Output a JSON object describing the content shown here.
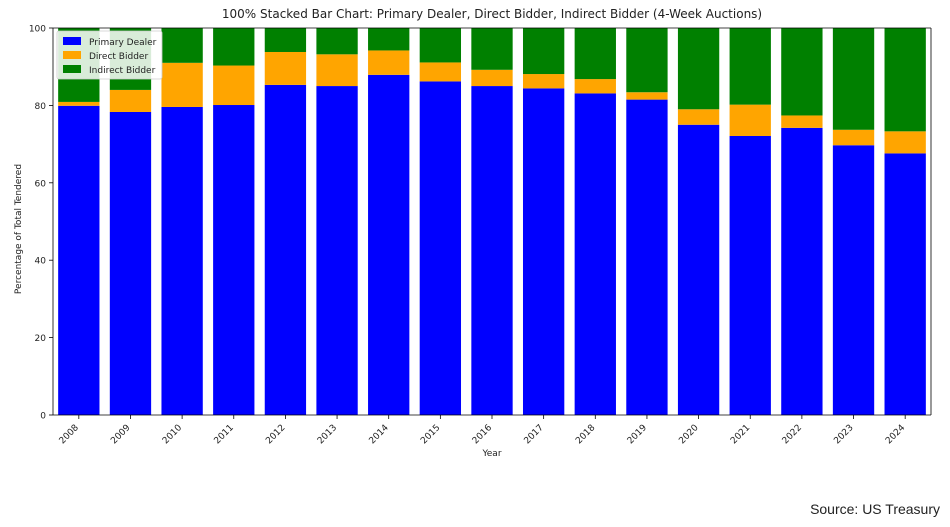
{
  "source": "Source: US Treasury",
  "chart_data": {
    "type": "bar",
    "stacked": true,
    "title": "100% Stacked Bar Chart: Primary Dealer, Direct Bidder, Indirect Bidder (4-Week Auctions)",
    "xlabel": "Year",
    "ylabel": "Percentage of Total Tendered",
    "ylim": [
      0,
      100
    ],
    "yticks": [
      0,
      20,
      40,
      60,
      80,
      100
    ],
    "legend_position": "top-left",
    "grid": false,
    "categories": [
      "2008",
      "2009",
      "2010",
      "2011",
      "2012",
      "2013",
      "2014",
      "2015",
      "2016",
      "2017",
      "2018",
      "2019",
      "2020",
      "2021",
      "2022",
      "2023",
      "2024"
    ],
    "series": [
      {
        "name": "Primary Dealer",
        "color": "#0000ff",
        "values": [
          79.9,
          78.3,
          79.6,
          80.1,
          85.3,
          85.0,
          87.9,
          86.2,
          85.0,
          84.4,
          83.1,
          81.5,
          75.0,
          72.1,
          74.2,
          69.7,
          67.6
        ]
      },
      {
        "name": "Direct Bidder",
        "color": "#ffa500",
        "values": [
          1.0,
          5.7,
          11.4,
          10.2,
          8.5,
          8.2,
          6.3,
          4.9,
          4.2,
          3.7,
          3.7,
          1.9,
          4.0,
          8.1,
          3.2,
          4.0,
          5.7
        ]
      },
      {
        "name": "Indirect Bidder",
        "color": "#008000",
        "values": [
          19.1,
          16.0,
          9.0,
          9.7,
          6.2,
          6.8,
          5.8,
          8.9,
          10.8,
          11.9,
          13.2,
          16.6,
          21.0,
          19.8,
          22.6,
          26.3,
          26.7
        ]
      }
    ]
  }
}
